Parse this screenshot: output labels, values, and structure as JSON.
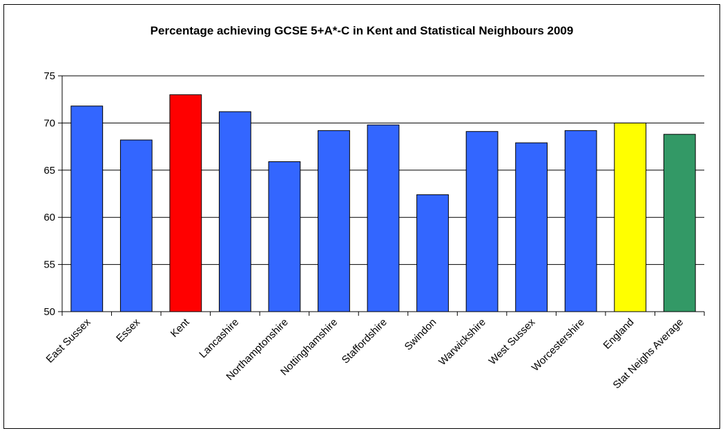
{
  "chart_data": {
    "type": "bar",
    "title": "Percentage achieving GCSE 5+A*-C in Kent and Statistical Neighbours 2009",
    "xlabel": "",
    "ylabel": "",
    "ylim": [
      50,
      75
    ],
    "yticks": [
      "50",
      "55",
      "60",
      "65",
      "70",
      "75"
    ],
    "grid": true,
    "legend": "none",
    "categories": [
      "East Sussex",
      "Essex",
      "Kent",
      "Lancashire",
      "Northamptonshire",
      "Nottinghamshire",
      "Staffordshire",
      "Swindon",
      "Warwickshire",
      "West Sussex",
      "Worcestershire",
      "England",
      "Stat Neighs Average"
    ],
    "values": [
      71.8,
      68.2,
      73.0,
      71.2,
      65.9,
      69.2,
      69.8,
      62.4,
      69.1,
      67.9,
      69.2,
      70.0,
      68.8
    ],
    "colors": [
      "#3366FF",
      "#3366FF",
      "#FF0000",
      "#3366FF",
      "#3366FF",
      "#3366FF",
      "#3366FF",
      "#3366FF",
      "#3366FF",
      "#3366FF",
      "#3366FF",
      "#FFFF00",
      "#339966"
    ]
  }
}
